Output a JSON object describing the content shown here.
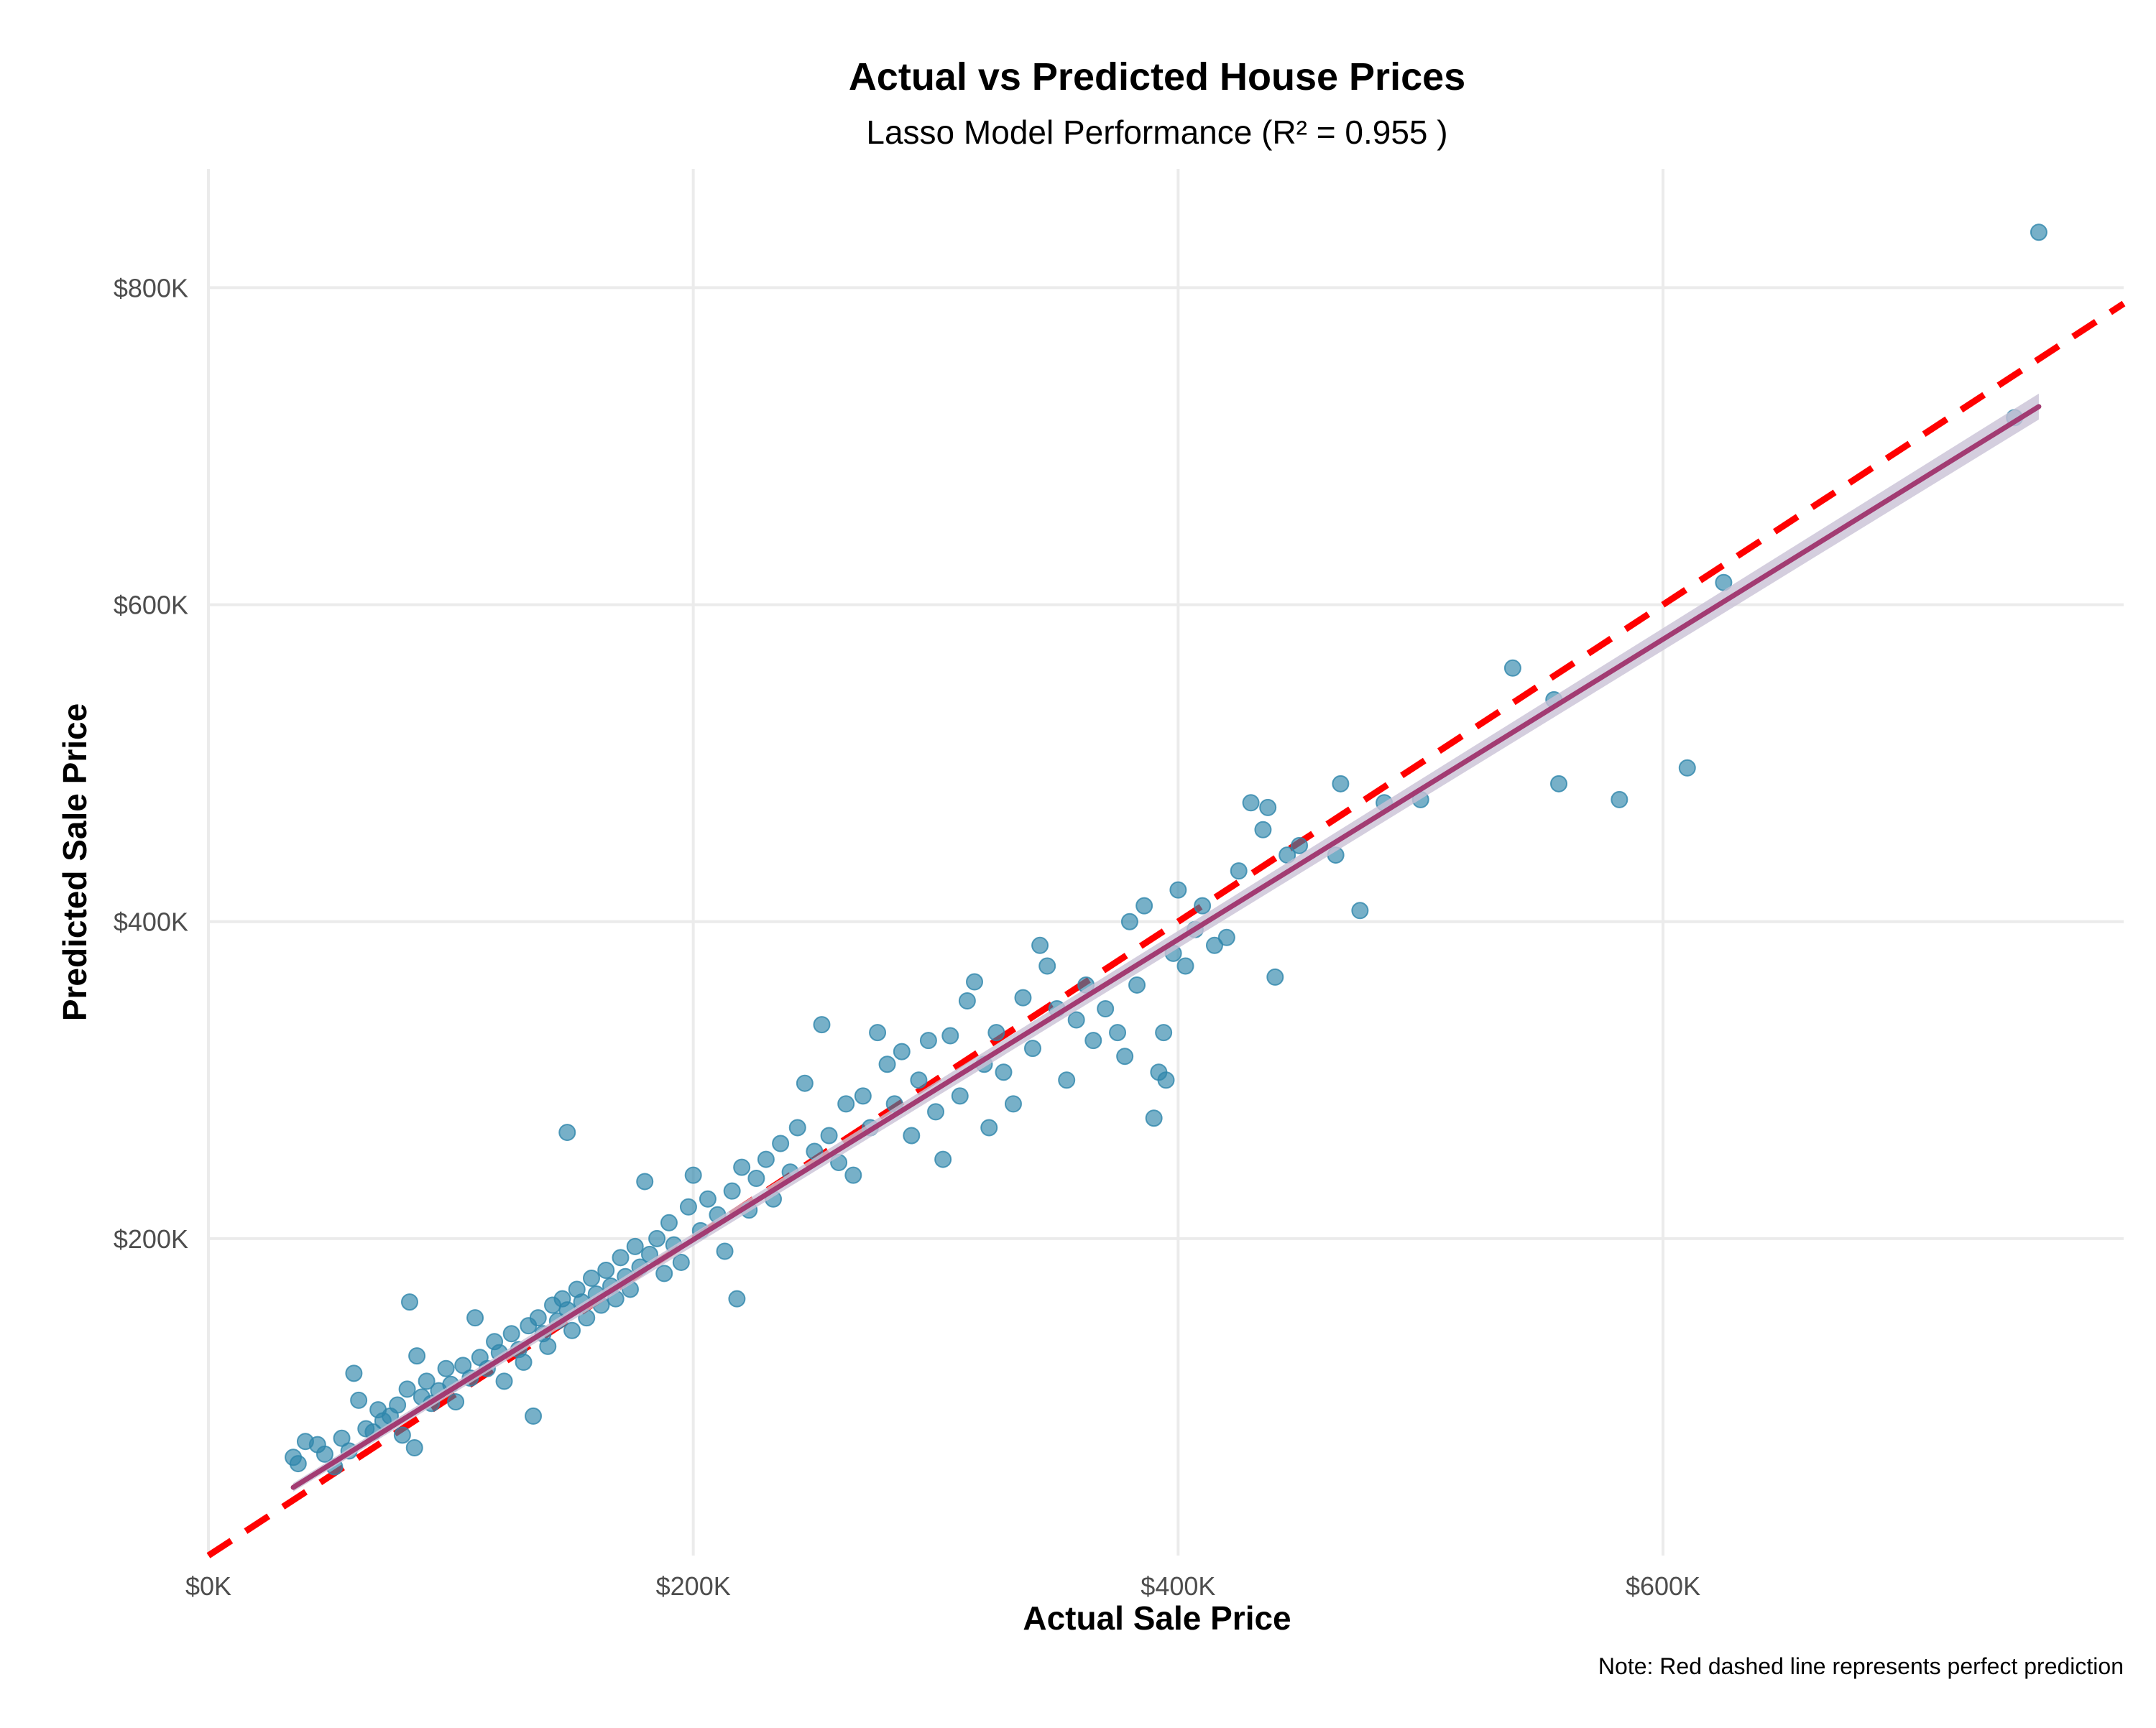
{
  "chart_data": {
    "type": "scatter",
    "title": "Actual vs Predicted House Prices",
    "subtitle": "Lasso Model Performance (R² = 0.955 )",
    "xlabel": "Actual Sale Price",
    "ylabel": "Predicted Sale Price",
    "caption": "Note: Red dashed line represents perfect prediction",
    "xlim": [
      0,
      790000
    ],
    "ylim": [
      0,
      875000
    ],
    "x_ticks": [
      {
        "value": 0,
        "label": "$0K"
      },
      {
        "value": 200000,
        "label": "$200K"
      },
      {
        "value": 400000,
        "label": "$400K"
      },
      {
        "value": 600000,
        "label": "$600K"
      }
    ],
    "y_ticks": [
      {
        "value": 200000,
        "label": "$200K"
      },
      {
        "value": 400000,
        "label": "$400K"
      },
      {
        "value": 600000,
        "label": "$600K"
      },
      {
        "value": 800000,
        "label": "$800K"
      }
    ],
    "grid": true,
    "colors": {
      "points": "#2E86AB",
      "fit_line": "#A23B72",
      "ci_band": "#c9c2d6",
      "reference_line": "#FF0000"
    },
    "reference_line": {
      "description": "perfect prediction",
      "slope": 1,
      "intercept": 0
    },
    "fit_line": {
      "x": [
        35000,
        755000
      ],
      "y": [
        43000,
        725000
      ]
    },
    "series": [
      {
        "points": [
          [
            35000,
            62000
          ],
          [
            37000,
            58000
          ],
          [
            40000,
            72000
          ],
          [
            45000,
            70000
          ],
          [
            48000,
            64000
          ],
          [
            52000,
            56000
          ],
          [
            55000,
            74000
          ],
          [
            58000,
            66000
          ],
          [
            60000,
            115000
          ],
          [
            62000,
            98000
          ],
          [
            65000,
            80000
          ],
          [
            68000,
            78000
          ],
          [
            70000,
            92000
          ],
          [
            72000,
            85000
          ],
          [
            75000,
            88000
          ],
          [
            78000,
            95000
          ],
          [
            80000,
            76000
          ],
          [
            82000,
            105000
          ],
          [
            83000,
            160000
          ],
          [
            85000,
            68000
          ],
          [
            86000,
            126000
          ],
          [
            88000,
            100000
          ],
          [
            90000,
            110000
          ],
          [
            92000,
            96000
          ],
          [
            95000,
            104000
          ],
          [
            98000,
            118000
          ],
          [
            100000,
            108000
          ],
          [
            102000,
            97000
          ],
          [
            105000,
            120000
          ],
          [
            108000,
            112000
          ],
          [
            110000,
            150000
          ],
          [
            112000,
            125000
          ],
          [
            115000,
            118000
          ],
          [
            118000,
            135000
          ],
          [
            120000,
            128000
          ],
          [
            122000,
            110000
          ],
          [
            125000,
            140000
          ],
          [
            128000,
            130000
          ],
          [
            130000,
            122000
          ],
          [
            132000,
            145000
          ],
          [
            134000,
            88000
          ],
          [
            136000,
            150000
          ],
          [
            138000,
            140000
          ],
          [
            140000,
            132000
          ],
          [
            142000,
            158000
          ],
          [
            144000,
            148000
          ],
          [
            146000,
            162000
          ],
          [
            148000,
            155000
          ],
          [
            148000,
            267000
          ],
          [
            150000,
            142000
          ],
          [
            152000,
            168000
          ],
          [
            154000,
            160000
          ],
          [
            156000,
            150000
          ],
          [
            158000,
            175000
          ],
          [
            160000,
            165000
          ],
          [
            162000,
            158000
          ],
          [
            164000,
            180000
          ],
          [
            166000,
            170000
          ],
          [
            168000,
            162000
          ],
          [
            170000,
            188000
          ],
          [
            172000,
            176000
          ],
          [
            174000,
            168000
          ],
          [
            176000,
            195000
          ],
          [
            178000,
            182000
          ],
          [
            180000,
            236000
          ],
          [
            182000,
            190000
          ],
          [
            185000,
            200000
          ],
          [
            188000,
            178000
          ],
          [
            190000,
            210000
          ],
          [
            192000,
            196000
          ],
          [
            195000,
            185000
          ],
          [
            198000,
            220000
          ],
          [
            200000,
            240000
          ],
          [
            203000,
            205000
          ],
          [
            206000,
            225000
          ],
          [
            210000,
            215000
          ],
          [
            213000,
            192000
          ],
          [
            216000,
            230000
          ],
          [
            218000,
            162000
          ],
          [
            220000,
            245000
          ],
          [
            223000,
            218000
          ],
          [
            226000,
            238000
          ],
          [
            230000,
            250000
          ],
          [
            233000,
            225000
          ],
          [
            236000,
            260000
          ],
          [
            240000,
            242000
          ],
          [
            243000,
            270000
          ],
          [
            246000,
            298000
          ],
          [
            250000,
            255000
          ],
          [
            253000,
            335000
          ],
          [
            256000,
            265000
          ],
          [
            260000,
            248000
          ],
          [
            263000,
            285000
          ],
          [
            266000,
            240000
          ],
          [
            270000,
            290000
          ],
          [
            273000,
            270000
          ],
          [
            276000,
            330000
          ],
          [
            280000,
            310000
          ],
          [
            283000,
            285000
          ],
          [
            286000,
            318000
          ],
          [
            290000,
            265000
          ],
          [
            293000,
            300000
          ],
          [
            297000,
            325000
          ],
          [
            300000,
            280000
          ],
          [
            303000,
            250000
          ],
          [
            306000,
            328000
          ],
          [
            310000,
            290000
          ],
          [
            313000,
            350000
          ],
          [
            316000,
            362000
          ],
          [
            320000,
            310000
          ],
          [
            322000,
            270000
          ],
          [
            325000,
            330000
          ],
          [
            328000,
            305000
          ],
          [
            332000,
            285000
          ],
          [
            336000,
            352000
          ],
          [
            340000,
            320000
          ],
          [
            343000,
            385000
          ],
          [
            346000,
            372000
          ],
          [
            350000,
            345000
          ],
          [
            354000,
            300000
          ],
          [
            358000,
            338000
          ],
          [
            362000,
            360000
          ],
          [
            365000,
            325000
          ],
          [
            370000,
            345000
          ],
          [
            375000,
            330000
          ],
          [
            378000,
            315000
          ],
          [
            380000,
            400000
          ],
          [
            383000,
            360000
          ],
          [
            386000,
            410000
          ],
          [
            390000,
            276000
          ],
          [
            392000,
            305000
          ],
          [
            394000,
            330000
          ],
          [
            395000,
            300000
          ],
          [
            398000,
            380000
          ],
          [
            400000,
            420000
          ],
          [
            403000,
            372000
          ],
          [
            407000,
            395000
          ],
          [
            410000,
            410000
          ],
          [
            415000,
            385000
          ],
          [
            420000,
            390000
          ],
          [
            425000,
            432000
          ],
          [
            430000,
            475000
          ],
          [
            435000,
            458000
          ],
          [
            437000,
            472000
          ],
          [
            440000,
            365000
          ],
          [
            445000,
            442000
          ],
          [
            450000,
            448000
          ],
          [
            465000,
            442000
          ],
          [
            467000,
            487000
          ],
          [
            475000,
            407000
          ],
          [
            485000,
            475000
          ],
          [
            500000,
            477000
          ],
          [
            538000,
            560000
          ],
          [
            555000,
            540000
          ],
          [
            557000,
            487000
          ],
          [
            582000,
            477000
          ],
          [
            610000,
            497000
          ],
          [
            625000,
            614000
          ],
          [
            745000,
            718000
          ],
          [
            755000,
            835000
          ]
        ]
      }
    ]
  }
}
